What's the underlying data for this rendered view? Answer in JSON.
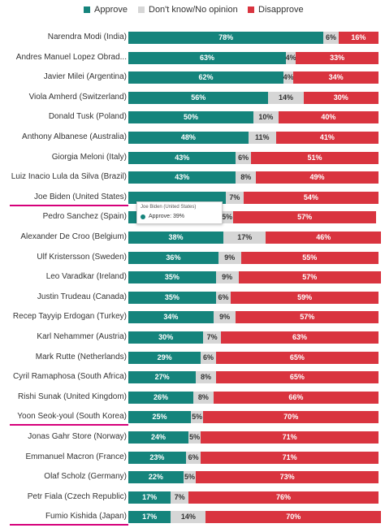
{
  "colors": {
    "approve": "#15847c",
    "no_opinion": "#d6d6d6",
    "disapprove": "#d9343f",
    "highlight": "#d6007a"
  },
  "chart_data": {
    "type": "bar",
    "stacked": true,
    "orientation": "horizontal",
    "xlim": [
      0,
      100
    ],
    "legend_position": "top",
    "grid": false,
    "categories": [
      "Narendra Modi (India)",
      "Andres Manuel Lopez Obrad...",
      "Javier Milei (Argentina)",
      "Viola Amherd (Switzerland)",
      "Donald Tusk (Poland)",
      "Anthony Albanese (Australia)",
      "Giorgia Meloni (Italy)",
      "Luiz Inacio Lula da Silva (Brazil)",
      "Joe Biden (United States)",
      "Pedro Sanchez (Spain)",
      "Alexander De Croo (Belgium)",
      "Ulf Kristersson (Sweden)",
      "Leo Varadkar (Ireland)",
      "Justin Trudeau (Canada)",
      "Recep Tayyip Erdogan (Turkey)",
      "Karl Nehammer (Austria)",
      "Mark Rutte (Netherlands)",
      "Cyril Ramaphosa (South Africa)",
      "Rishi Sunak (United Kingdom)",
      "Yoon Seok-youl (South Korea)",
      "Jonas Gahr Store (Norway)",
      "Emmanuel Macron (France)",
      "Olaf Scholz (Germany)",
      "Petr Fiala (Czech Republic)",
      "Fumio Kishida (Japan)"
    ],
    "series": [
      {
        "name": "Approve",
        "values": [
          78,
          63,
          62,
          56,
          50,
          48,
          43,
          43,
          39,
          37,
          38,
          36,
          35,
          35,
          34,
          30,
          29,
          27,
          26,
          25,
          24,
          23,
          22,
          17,
          17
        ]
      },
      {
        "name": "Don't know/No opinion",
        "values": [
          6,
          4,
          4,
          14,
          10,
          11,
          6,
          8,
          7,
          5,
          17,
          9,
          9,
          6,
          9,
          7,
          6,
          8,
          8,
          5,
          5,
          6,
          5,
          7,
          14
        ]
      },
      {
        "name": "Disapprove",
        "values": [
          16,
          33,
          34,
          30,
          40,
          41,
          51,
          49,
          54,
          57,
          46,
          55,
          57,
          59,
          57,
          63,
          65,
          65,
          66,
          70,
          71,
          71,
          73,
          76,
          70
        ]
      }
    ],
    "highlighted": [
      "Joe Biden (United States)",
      "Yoon Seok-youl (South Korea)",
      "Fumio Kishida (Japan)"
    ],
    "hidden_labels": [
      {
        "category": "Joe Biden (United States)",
        "series": "Approve"
      },
      {
        "category": "Pedro Sanchez (Spain)",
        "series": "Approve"
      }
    ]
  },
  "tooltip": {
    "title": "Joe Biden (United States)",
    "series_name": "Approve",
    "value_text": "39%"
  }
}
